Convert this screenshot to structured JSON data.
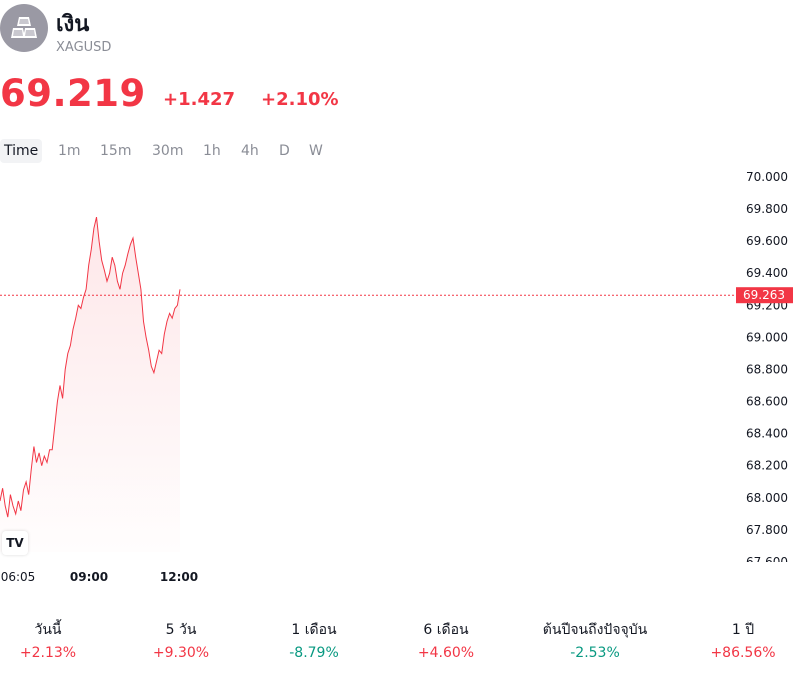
{
  "header": {
    "name": "เงิน",
    "ticker": "XAGUSD",
    "logo_icon": "silver-bars-icon"
  },
  "quote": {
    "price": "69.219",
    "change": "+1.427",
    "change_percent": "+2.10%",
    "color": "#f23645"
  },
  "tabs": [
    {
      "label": "Time",
      "active": true
    },
    {
      "label": "1m",
      "active": false
    },
    {
      "label": "15m",
      "active": false
    },
    {
      "label": "30m",
      "active": false
    },
    {
      "label": "1h",
      "active": false
    },
    {
      "label": "4h",
      "active": false
    },
    {
      "label": "D",
      "active": false
    },
    {
      "label": "W",
      "active": false
    }
  ],
  "chart": {
    "last_price_label": "69.263",
    "tv_logo": "TV",
    "line_color": "#f23645"
  },
  "chart_data": {
    "type": "area",
    "y_tick_labels": [
      "70.000",
      "69.800",
      "69.600",
      "69.400",
      "69.200",
      "69.000",
      "68.800",
      "68.600",
      "68.400",
      "68.200",
      "68.000",
      "67.800",
      "67.600"
    ],
    "ylim": [
      67.6,
      70.0
    ],
    "x_tick_labels": [
      "06:05",
      "09:00",
      "12:00"
    ],
    "current_value": 69.263,
    "series": [
      {
        "values": [
          67.98,
          68.06,
          67.95,
          67.88,
          68.02,
          67.95,
          67.9,
          67.98,
          67.92,
          68.05,
          68.1,
          68.02,
          68.18,
          68.32,
          68.22,
          68.28,
          68.2,
          68.26,
          68.22,
          68.3,
          68.3,
          68.45,
          68.6,
          68.7,
          68.62,
          68.8,
          68.9,
          68.95,
          69.05,
          69.12,
          69.2,
          69.18,
          69.25,
          69.3,
          69.45,
          69.55,
          69.68,
          69.75,
          69.6,
          69.48,
          69.42,
          69.35,
          69.4,
          69.5,
          69.45,
          69.35,
          69.3,
          69.4,
          69.45,
          69.52,
          69.58,
          69.62,
          69.5,
          69.4,
          69.3,
          69.1,
          69.0,
          68.92,
          68.82,
          68.78,
          68.85,
          68.92,
          68.9,
          69.02,
          69.1,
          69.15,
          69.12,
          69.18,
          69.2,
          69.3
        ]
      }
    ]
  },
  "performance": [
    {
      "label": "วันนี้",
      "value": "+2.13%",
      "dir": "up"
    },
    {
      "label": "5 วัน",
      "value": "+9.30%",
      "dir": "up"
    },
    {
      "label": "1 เดือน",
      "value": "-8.79%",
      "dir": "down"
    },
    {
      "label": "6 เดือน",
      "value": "+4.60%",
      "dir": "up"
    },
    {
      "label": "ต้นปีจนถึงปัจจุบัน",
      "value": "-2.53%",
      "dir": "down"
    },
    {
      "label": "1 ปี",
      "value": "+86.56%",
      "dir": "up"
    }
  ]
}
